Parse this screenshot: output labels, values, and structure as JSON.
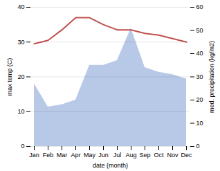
{
  "chart_data": {
    "type": "line",
    "categories": [
      "Jan",
      "Feb",
      "Mar",
      "Apr",
      "May",
      "Jun",
      "Jul",
      "Aug",
      "Sep",
      "Oct",
      "Nov",
      "Dec"
    ],
    "xlabel": "date (month)",
    "ylabel": "max temp (C)",
    "y2label": "med. precipitation (kg/m2)",
    "series": [
      {
        "type": "area",
        "axis": "y2",
        "color": "#b8c9e8",
        "values": [
          27,
          17,
          18,
          20,
          35,
          35,
          37,
          51,
          34,
          32,
          31,
          29
        ]
      },
      {
        "type": "line",
        "color": "#c0504d",
        "values": [
          29.5,
          30.5,
          33.5,
          37.0,
          37.0,
          35.0,
          33.5,
          33.5,
          32.5,
          32.0,
          31.0,
          30.0
        ]
      }
    ],
    "ylim": [
      0,
      40
    ],
    "yticks": [
      0,
      10,
      20,
      30,
      40
    ],
    "y2lim": [
      0,
      60
    ],
    "y2ticks": [
      0,
      10,
      20,
      30,
      40,
      50,
      60
    ],
    "grid": true
  }
}
